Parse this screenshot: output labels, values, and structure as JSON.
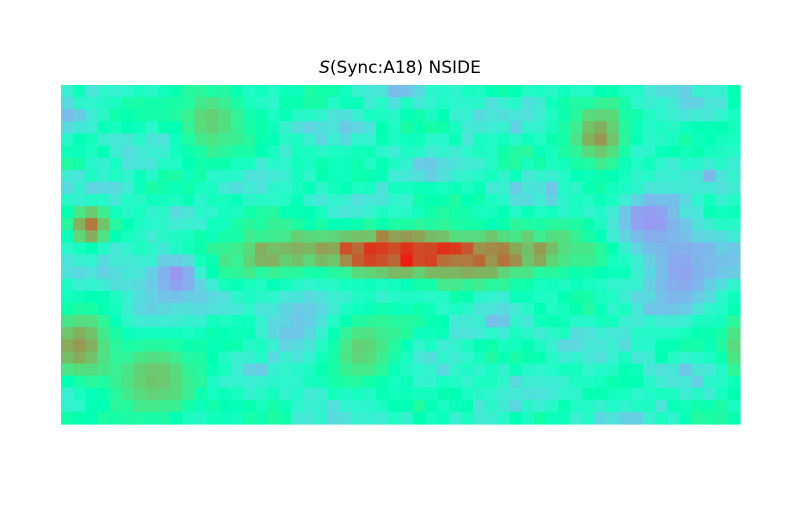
{
  "chart_data": {
    "type": "heatmap",
    "title": {
      "symbol": "S",
      "rest": "(Sync:A18) NSIDE"
    },
    "projection": "equirectangular-full-sky",
    "colormap": "rainbow",
    "colorbar": false,
    "grid": false,
    "legend": "none",
    "map_extent": {
      "longitude_range": [
        180,
        -180
      ],
      "latitude_range": [
        -90,
        90
      ]
    },
    "value_range": [
      0,
      1
    ],
    "features": [
      {
        "name": "galactic-plane-band",
        "lat": 0,
        "lat_halfwidth": 10,
        "lon_range": [
          -180,
          180
        ],
        "peak_value": 0.95
      },
      {
        "name": "cold-spot-1",
        "lon": 118,
        "lat": -12,
        "radius": 10,
        "value": 0.18
      },
      {
        "name": "cold-spot-2",
        "lon": 133,
        "lat": -36,
        "radius": 16,
        "value": 0.18
      },
      {
        "name": "cold-spot-3",
        "lon": -133,
        "lat": 18,
        "radius": 14,
        "value": 0.2
      },
      {
        "name": "cold-spot-4",
        "lon": -150,
        "lat": -10,
        "radius": 16,
        "value": 0.22
      },
      {
        "name": "cold-spot-5",
        "lon": 45,
        "lat": -35,
        "radius": 18,
        "value": 0.25
      },
      {
        "name": "warm-spot-1",
        "lon": 170,
        "lat": -48,
        "radius": 14,
        "value": 0.8
      },
      {
        "name": "warm-spot-2",
        "lon": 165,
        "lat": 15,
        "radius": 8,
        "value": 0.85
      },
      {
        "name": "warm-spot-3",
        "lon": -105,
        "lat": 62,
        "radius": 12,
        "value": 0.8
      },
      {
        "name": "warm-spot-4",
        "lon": 20,
        "lat": -50,
        "radius": 15,
        "value": 0.7
      },
      {
        "name": "warm-spot-5",
        "lon": 100,
        "lat": 72,
        "radius": 15,
        "value": 0.7
      },
      {
        "name": "warm-spot-6",
        "lon": 130,
        "lat": -65,
        "radius": 20,
        "value": 0.72
      }
    ]
  }
}
